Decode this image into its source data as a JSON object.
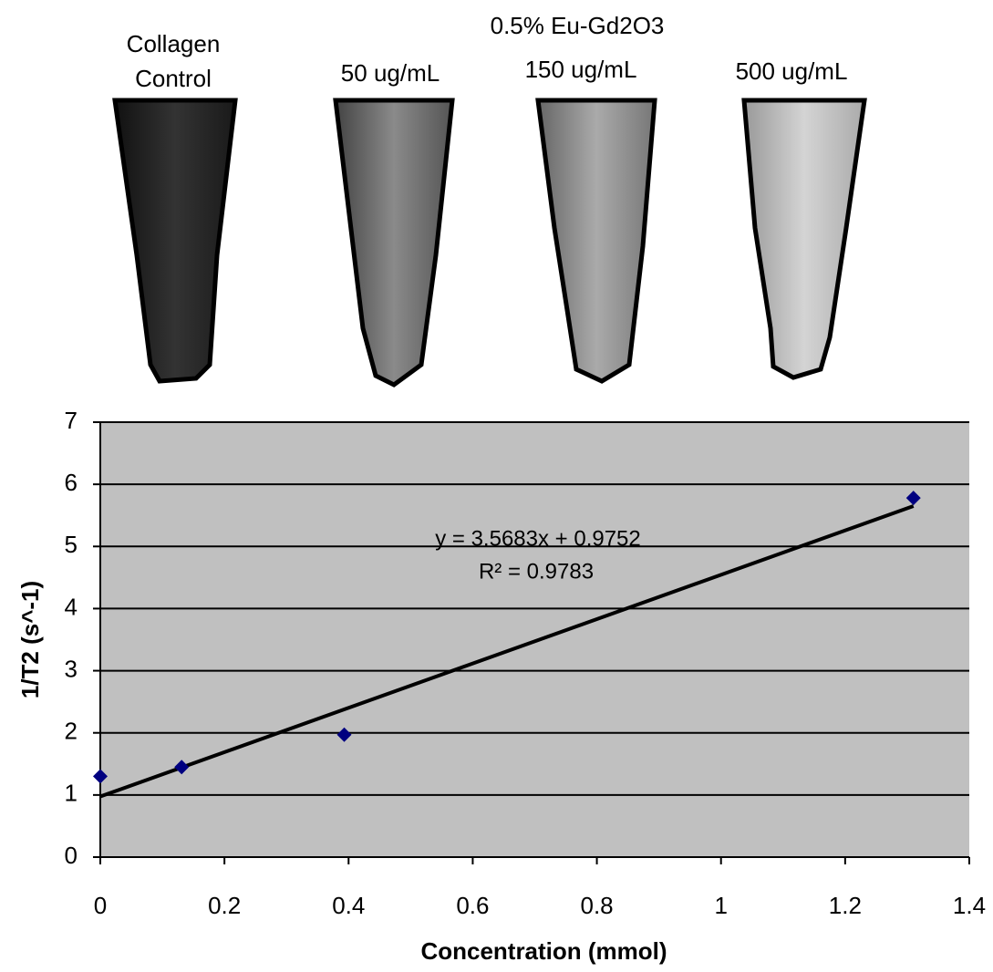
{
  "figure_labels": {
    "group_label": "0.5% Eu-Gd2O3",
    "samples": [
      [
        "Collagen",
        "Control"
      ],
      [
        "50 ug/mL"
      ],
      [
        "150 ug/mL"
      ],
      [
        "500 ug/mL"
      ]
    ]
  },
  "chart_data": {
    "type": "scatter",
    "x_label": "Concentration (mmol)",
    "y_label": "1/T2 (s^-1)",
    "series": [
      {
        "color": "#000080",
        "x": [
          0,
          0.131,
          0.393,
          1.31
        ],
        "values": [
          1.3,
          1.45,
          1.97,
          5.78
        ]
      }
    ],
    "trendline": {
      "slope": 3.5683,
      "intercept": 0.9752,
      "equation": "y = 3.5683x + 0.9752",
      "r2_label": "R² = 0.9783"
    },
    "xlim": [
      0,
      1.4
    ],
    "xticks": [
      0,
      0.2,
      0.4,
      0.6,
      0.8,
      1,
      1.2,
      1.4
    ],
    "ylim": [
      0,
      7
    ],
    "yticks": [
      0,
      1,
      2,
      3,
      4,
      5,
      6,
      7
    ],
    "grid": true,
    "plot_background": "#c0c0c0"
  }
}
